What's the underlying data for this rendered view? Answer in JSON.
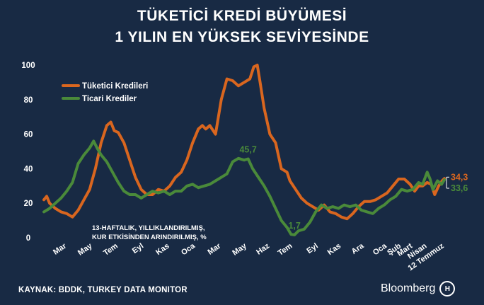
{
  "title_line1": "TÜKETİCİ KREDİ BÜYÜMESİ",
  "title_line2": "1 YILIN EN YÜKSEK SEVİYESİNDE",
  "source": "KAYNAK: BDDK, TURKEY DATA MONITOR",
  "brand": "Bloomberg",
  "colors": {
    "background": "#182a44",
    "tuketici": "#d9661f",
    "ticari": "#4a8a3a",
    "text": "#ffffff"
  },
  "chart_data": {
    "type": "line",
    "note_line1": "13-HAFTALIK, YILLIKLANDIRILMIŞ,",
    "note_line2": "KUR ETKİSİNDEN ARINDIRILMIŞ, %",
    "ylim": [
      0,
      100
    ],
    "yticks": [
      "0",
      "20",
      "40",
      "60",
      "80",
      "100"
    ],
    "xlim": [
      0,
      70
    ],
    "x_ticks": [
      {
        "x": 4,
        "label": "Mar"
      },
      {
        "x": 8.5,
        "label": "May"
      },
      {
        "x": 13,
        "label": "Tem"
      },
      {
        "x": 17.5,
        "label": "Eyl"
      },
      {
        "x": 22,
        "label": "Kas"
      },
      {
        "x": 26.5,
        "label": "Oca"
      },
      {
        "x": 31,
        "label": "Mar"
      },
      {
        "x": 35.5,
        "label": "May"
      },
      {
        "x": 39.5,
        "label": "Haz"
      },
      {
        "x": 43.5,
        "label": "Tem"
      },
      {
        "x": 48,
        "label": "Eyl"
      },
      {
        "x": 52,
        "label": "Kas"
      },
      {
        "x": 56,
        "label": "Ara"
      },
      {
        "x": 60,
        "label": "Oca"
      },
      {
        "x": 62.5,
        "label": "Şub"
      },
      {
        "x": 64.5,
        "label": "Mart"
      },
      {
        "x": 67,
        "label": "Nisan"
      },
      {
        "x": 70,
        "label": "12 Temmuz"
      }
    ],
    "series": [
      {
        "name": "Tüketici Kredileri",
        "color": "#d9661f",
        "points": [
          [
            0,
            22
          ],
          [
            0.5,
            24
          ],
          [
            1,
            20
          ],
          [
            2,
            17
          ],
          [
            3,
            15
          ],
          [
            4,
            14
          ],
          [
            5,
            12
          ],
          [
            6,
            16
          ],
          [
            7,
            22
          ],
          [
            8,
            28
          ],
          [
            9,
            40
          ],
          [
            10,
            55
          ],
          [
            11,
            65
          ],
          [
            11.7,
            67
          ],
          [
            12.3,
            62
          ],
          [
            13,
            61
          ],
          [
            14,
            55
          ],
          [
            15,
            45
          ],
          [
            16,
            35
          ],
          [
            17,
            28
          ],
          [
            18,
            25
          ],
          [
            19,
            25
          ],
          [
            20,
            28
          ],
          [
            21,
            27
          ],
          [
            22,
            30
          ],
          [
            23,
            35
          ],
          [
            24,
            38
          ],
          [
            25,
            45
          ],
          [
            26,
            55
          ],
          [
            27,
            63
          ],
          [
            27.7,
            65
          ],
          [
            28.3,
            63
          ],
          [
            29,
            65
          ],
          [
            30,
            60
          ],
          [
            31,
            80
          ],
          [
            32,
            92
          ],
          [
            33,
            91
          ],
          [
            34,
            88
          ],
          [
            35,
            90
          ],
          [
            36,
            92
          ],
          [
            36.7,
            99
          ],
          [
            37.3,
            100
          ],
          [
            37.8,
            90
          ],
          [
            38.5,
            75
          ],
          [
            39.5,
            60
          ],
          [
            40.5,
            55
          ],
          [
            41.5,
            40
          ],
          [
            42.5,
            38
          ],
          [
            43,
            33
          ],
          [
            44,
            28
          ],
          [
            45,
            23
          ],
          [
            46,
            20
          ],
          [
            47,
            18
          ],
          [
            48,
            16
          ],
          [
            49,
            19
          ],
          [
            50,
            15
          ],
          [
            51,
            14
          ],
          [
            52,
            12
          ],
          [
            53,
            11
          ],
          [
            54,
            14
          ],
          [
            55,
            18
          ],
          [
            56,
            21
          ],
          [
            57,
            21
          ],
          [
            58,
            22
          ],
          [
            59,
            24
          ],
          [
            60,
            26
          ],
          [
            61,
            30
          ],
          [
            62,
            34
          ],
          [
            63,
            34
          ],
          [
            64,
            31
          ],
          [
            64.8,
            27
          ],
          [
            65.5,
            30
          ],
          [
            66.2,
            30
          ],
          [
            67,
            32
          ],
          [
            67.7,
            31
          ],
          [
            68.3,
            25
          ],
          [
            69,
            30
          ],
          [
            69.6,
            33
          ],
          [
            70,
            34.3
          ]
        ]
      },
      {
        "name": "Ticari Krediler",
        "color": "#4a8a3a",
        "points": [
          [
            0,
            15
          ],
          [
            1,
            17
          ],
          [
            2,
            20
          ],
          [
            3,
            23
          ],
          [
            4,
            27
          ],
          [
            5,
            32
          ],
          [
            6,
            43
          ],
          [
            7,
            48
          ],
          [
            8,
            52
          ],
          [
            8.7,
            56
          ],
          [
            9.3,
            52
          ],
          [
            10,
            48
          ],
          [
            11,
            44
          ],
          [
            12,
            38
          ],
          [
            13,
            32
          ],
          [
            14,
            27
          ],
          [
            15,
            25
          ],
          [
            16,
            25
          ],
          [
            17,
            23
          ],
          [
            18,
            25
          ],
          [
            19,
            27
          ],
          [
            20,
            26
          ],
          [
            21,
            27
          ],
          [
            22,
            25
          ],
          [
            23,
            27
          ],
          [
            24,
            27
          ],
          [
            25,
            30
          ],
          [
            26,
            31
          ],
          [
            27,
            29
          ],
          [
            28,
            30
          ],
          [
            29,
            31
          ],
          [
            30,
            33
          ],
          [
            31,
            35
          ],
          [
            32,
            37
          ],
          [
            33,
            44
          ],
          [
            34,
            46
          ],
          [
            35,
            45
          ],
          [
            35.7,
            45.7
          ],
          [
            36.5,
            40
          ],
          [
            37.5,
            35
          ],
          [
            38.5,
            30
          ],
          [
            39.5,
            24
          ],
          [
            40.5,
            17
          ],
          [
            41.5,
            10
          ],
          [
            42.5,
            6
          ],
          [
            43.2,
            2
          ],
          [
            43.8,
            1.7
          ],
          [
            44.5,
            4
          ],
          [
            45.5,
            5
          ],
          [
            46.5,
            9
          ],
          [
            47.5,
            15
          ],
          [
            48.5,
            19
          ],
          [
            49.5,
            17
          ],
          [
            50.5,
            18
          ],
          [
            51.5,
            17
          ],
          [
            52.5,
            19
          ],
          [
            53.5,
            18
          ],
          [
            54.5,
            19
          ],
          [
            55.5,
            16
          ],
          [
            56.5,
            15
          ],
          [
            57.5,
            14
          ],
          [
            58.5,
            17
          ],
          [
            59.5,
            19
          ],
          [
            60.5,
            22
          ],
          [
            61.5,
            24
          ],
          [
            62.5,
            28
          ],
          [
            63.5,
            27
          ],
          [
            64.5,
            28
          ],
          [
            65.5,
            32
          ],
          [
            66.2,
            31
          ],
          [
            67,
            38
          ],
          [
            67.5,
            34
          ],
          [
            68,
            28
          ],
          [
            68.8,
            33
          ],
          [
            69.5,
            31
          ],
          [
            70,
            33.6
          ]
        ]
      }
    ],
    "annotations": [
      {
        "text": "45,7",
        "x": 35.7,
        "y": 45.7,
        "series": 1
      },
      {
        "text": "1,7",
        "x": 43.8,
        "y": 1.7,
        "series": 1
      }
    ],
    "end_labels": [
      {
        "text": "34,3",
        "value": 34.3,
        "series": 0
      },
      {
        "text": "33,6",
        "value": 33.6,
        "series": 1
      }
    ],
    "legend_position": "top-left",
    "grid": false
  }
}
